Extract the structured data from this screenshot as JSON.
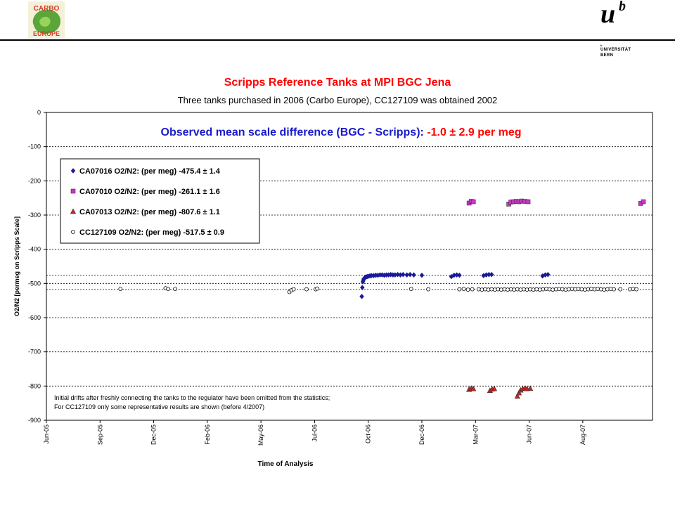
{
  "header": {
    "logo_left_line1": "CARBO",
    "logo_left_line2": "EUROPE",
    "logo_right_mark": "u",
    "logo_right_sup": "b",
    "logo_right_line1": "UNIVERSITÄT",
    "logo_right_line2": "BERN"
  },
  "chart_data": {
    "type": "scatter",
    "title": "Scripps Reference Tanks at MPI BGC Jena",
    "subtitle": "Three tanks purchased in 2006 (Carbo Europe), CC127109 was obtained 2002",
    "annotation_parts": [
      "Observed mean scale difference (BGC - Scripps): ",
      "-1.0 ± 2.9 per meg"
    ],
    "note_lines": [
      "Initial drifts after freshly connecting the tanks to the regulator have been omitted from the statistics;",
      "For CC127109 only some representative results are shown (before 4/2007)"
    ],
    "xlabel": "Time of Analysis",
    "ylabel": "O2/N2 [permeg on Scripps Scale]",
    "x_tick_labels": [
      "Jun-05",
      "Sep-05",
      "Dec-05",
      "Feb-06",
      "May-06",
      "Jul-06",
      "Oct-06",
      "Dec-06",
      "Mar-07",
      "Jun-07",
      "Aug-07"
    ],
    "y_tick_labels": [
      "0",
      "-100",
      "-200",
      "-300",
      "-400",
      "-500",
      "-600",
      "-700",
      "-800",
      "-900"
    ],
    "ylim": [
      -900,
      0
    ],
    "xlim": [
      0,
      11.3
    ],
    "grid": "horizontal dotted",
    "reference_lines": [
      -475.4,
      -517.5
    ],
    "legend_position": "upper-left",
    "series": [
      {
        "name": "CA07016 O2/N2: (per meg)",
        "mean": "-475.4",
        "pm": "±",
        "sd": "1.4",
        "marker": "diamond",
        "color": "#1a1a99",
        "points": [
          [
            5.88,
            -538
          ],
          [
            5.89,
            -512
          ],
          [
            5.9,
            -495
          ],
          [
            5.91,
            -490
          ],
          [
            5.92,
            -486
          ],
          [
            5.94,
            -483
          ],
          [
            5.96,
            -481
          ],
          [
            5.98,
            -480
          ],
          [
            6.0,
            -479
          ],
          [
            6.03,
            -478
          ],
          [
            6.06,
            -477
          ],
          [
            6.1,
            -477
          ],
          [
            6.14,
            -476
          ],
          [
            6.18,
            -476
          ],
          [
            6.22,
            -475
          ],
          [
            6.26,
            -475
          ],
          [
            6.3,
            -476
          ],
          [
            6.34,
            -475
          ],
          [
            6.38,
            -475
          ],
          [
            6.42,
            -474
          ],
          [
            6.46,
            -475
          ],
          [
            6.5,
            -475
          ],
          [
            6.55,
            -474
          ],
          [
            6.6,
            -475
          ],
          [
            6.65,
            -474
          ],
          [
            6.72,
            -475
          ],
          [
            6.78,
            -474
          ],
          [
            6.85,
            -475
          ],
          [
            7.0,
            -476
          ],
          [
            7.55,
            -480
          ],
          [
            7.6,
            -476
          ],
          [
            7.65,
            -475
          ],
          [
            7.7,
            -476
          ],
          [
            8.15,
            -477
          ],
          [
            8.2,
            -475
          ],
          [
            8.25,
            -474
          ],
          [
            8.3,
            -474
          ],
          [
            9.25,
            -478
          ],
          [
            9.3,
            -475
          ],
          [
            9.35,
            -474
          ]
        ]
      },
      {
        "name": "CA07010 O2/N2: (per meg)",
        "mean": "-261.1",
        "pm": "±",
        "sd": "1.6",
        "marker": "square",
        "color": "#cc33cc",
        "points": [
          [
            7.88,
            -265
          ],
          [
            7.92,
            -260
          ],
          [
            7.96,
            -261
          ],
          [
            8.62,
            -268
          ],
          [
            8.66,
            -262
          ],
          [
            8.71,
            -261
          ],
          [
            8.76,
            -260
          ],
          [
            8.81,
            -261
          ],
          [
            8.86,
            -259
          ],
          [
            8.92,
            -260
          ],
          [
            8.98,
            -261
          ],
          [
            11.08,
            -266
          ],
          [
            11.13,
            -261
          ]
        ]
      },
      {
        "name": "CA07013 O2/N2: (per meg)",
        "mean": "-807.6",
        "pm": "±",
        "sd": "1.1",
        "marker": "triangle",
        "color": "#cc2222",
        "points": [
          [
            7.88,
            -810
          ],
          [
            7.92,
            -807
          ],
          [
            7.96,
            -808
          ],
          [
            8.27,
            -813
          ],
          [
            8.31,
            -809
          ],
          [
            8.35,
            -808
          ],
          [
            8.78,
            -830
          ],
          [
            8.81,
            -820
          ],
          [
            8.84,
            -812
          ],
          [
            8.88,
            -808
          ],
          [
            8.92,
            -807
          ],
          [
            8.96,
            -808
          ],
          [
            9.02,
            -807
          ]
        ]
      },
      {
        "name": "CC127109 O2/N2: (per meg)",
        "mean": "-517.5",
        "pm": "±",
        "sd": "0.9",
        "marker": "circle",
        "color": "#000000",
        "points": [
          [
            1.38,
            -516
          ],
          [
            2.22,
            -514
          ],
          [
            2.27,
            -516
          ],
          [
            2.4,
            -516
          ],
          [
            4.53,
            -525
          ],
          [
            4.57,
            -520
          ],
          [
            4.61,
            -517
          ],
          [
            4.85,
            -517
          ],
          [
            5.02,
            -517
          ],
          [
            5.05,
            -515
          ],
          [
            6.8,
            -516
          ],
          [
            7.12,
            -517
          ],
          [
            7.7,
            -517
          ],
          [
            7.78,
            -516
          ],
          [
            7.86,
            -518
          ],
          [
            7.94,
            -517
          ],
          [
            8.06,
            -517
          ],
          [
            8.12,
            -518
          ],
          [
            8.18,
            -517
          ],
          [
            8.24,
            -518
          ],
          [
            8.3,
            -517
          ],
          [
            8.36,
            -518
          ],
          [
            8.42,
            -517
          ],
          [
            8.48,
            -518
          ],
          [
            8.54,
            -517
          ],
          [
            8.6,
            -518
          ],
          [
            8.66,
            -517
          ],
          [
            8.72,
            -518
          ],
          [
            8.78,
            -517
          ],
          [
            8.84,
            -518
          ],
          [
            8.9,
            -517
          ],
          [
            8.96,
            -518
          ],
          [
            9.02,
            -517
          ],
          [
            9.08,
            -518
          ],
          [
            9.14,
            -517
          ],
          [
            9.2,
            -518
          ],
          [
            9.26,
            -517
          ],
          [
            9.32,
            -516
          ],
          [
            9.38,
            -517
          ],
          [
            9.44,
            -518
          ],
          [
            9.5,
            -517
          ],
          [
            9.56,
            -516
          ],
          [
            9.62,
            -517
          ],
          [
            9.68,
            -518
          ],
          [
            9.74,
            -517
          ],
          [
            9.8,
            -516
          ],
          [
            9.86,
            -517
          ],
          [
            9.92,
            -516
          ],
          [
            9.98,
            -517
          ],
          [
            10.04,
            -518
          ],
          [
            10.1,
            -517
          ],
          [
            10.16,
            -516
          ],
          [
            10.22,
            -517
          ],
          [
            10.28,
            -516
          ],
          [
            10.34,
            -517
          ],
          [
            10.4,
            -518
          ],
          [
            10.46,
            -517
          ],
          [
            10.52,
            -516
          ],
          [
            10.58,
            -517
          ],
          [
            10.7,
            -517
          ],
          [
            10.88,
            -517
          ],
          [
            10.94,
            -516
          ],
          [
            11.0,
            -517
          ]
        ]
      }
    ]
  }
}
